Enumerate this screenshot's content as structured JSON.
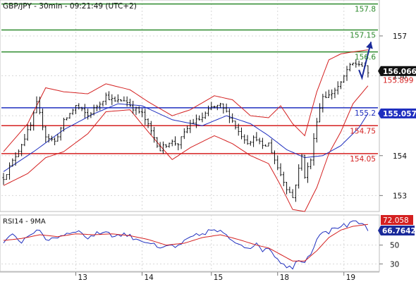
{
  "chart_data": [
    {
      "type": "candlestick",
      "title": "GBP/JPY - 30min - 09:21:49 (UTC+2)",
      "ylim": [
        152.6,
        157.9
      ],
      "yticks": [
        153,
        154,
        155,
        156,
        157
      ],
      "x_day_labels": [
        {
          "label": "13",
          "bar": 24
        },
        {
          "label": "14",
          "bar": 46
        },
        {
          "label": "15",
          "bar": 69
        },
        {
          "label": "18",
          "bar": 91
        },
        {
          "label": "19",
          "bar": 113
        }
      ],
      "n_bars": 122,
      "last_price": "156.066",
      "reference_price": "155.899",
      "current_value_label": "155.057",
      "resistance_levels": [
        {
          "label": "157.8",
          "value": 157.8,
          "color": "#2e8b2e"
        },
        {
          "label": "157.15",
          "value": 157.15,
          "color": "#2e8b2e"
        },
        {
          "label": "156.6",
          "value": 156.6,
          "color": "#2e8b2e"
        }
      ],
      "pivot_level": {
        "label": "155.2",
        "value": 155.2,
        "color": "#1f2fbf"
      },
      "support_levels": [
        {
          "label": "154.75",
          "value": 154.75,
          "color": "#d42020"
        },
        {
          "label": "154.05",
          "value": 154.05,
          "color": "#d42020"
        }
      ],
      "close_anchors": [
        [
          0,
          153.45
        ],
        [
          3,
          153.85
        ],
        [
          6,
          154.3
        ],
        [
          9,
          154.75
        ],
        [
          11,
          155.3
        ],
        [
          14,
          154.5
        ],
        [
          17,
          154.35
        ],
        [
          20,
          154.85
        ],
        [
          24,
          155.25
        ],
        [
          28,
          155.0
        ],
        [
          31,
          155.25
        ],
        [
          34,
          155.5
        ],
        [
          37,
          155.35
        ],
        [
          40,
          155.4
        ],
        [
          43,
          155.2
        ],
        [
          46,
          155.05
        ],
        [
          49,
          154.6
        ],
        [
          52,
          154.15
        ],
        [
          55,
          154.35
        ],
        [
          58,
          154.3
        ],
        [
          62,
          154.8
        ],
        [
          66,
          154.95
        ],
        [
          69,
          155.2
        ],
        [
          72,
          155.25
        ],
        [
          75,
          155.0
        ],
        [
          78,
          154.6
        ],
        [
          81,
          154.35
        ],
        [
          84,
          154.45
        ],
        [
          86,
          154.2
        ],
        [
          88,
          154.3
        ],
        [
          91,
          153.7
        ],
        [
          94,
          153.2
        ],
        [
          96,
          152.95
        ],
        [
          98,
          153.65
        ],
        [
          99,
          154.0
        ],
        [
          100,
          153.5
        ],
        [
          102,
          153.9
        ],
        [
          104,
          154.9
        ],
        [
          106,
          155.5
        ],
        [
          108,
          155.5
        ],
        [
          110,
          155.65
        ],
        [
          112,
          155.8
        ],
        [
          114,
          156.15
        ],
        [
          116,
          156.3
        ],
        [
          118,
          156.3
        ],
        [
          120,
          156.2
        ],
        [
          121,
          156.066
        ]
      ],
      "moving_average_anchors": [
        [
          0,
          153.6
        ],
        [
          10,
          154.1
        ],
        [
          20,
          154.65
        ],
        [
          30,
          155.05
        ],
        [
          38,
          155.3
        ],
        [
          46,
          155.25
        ],
        [
          56,
          154.9
        ],
        [
          66,
          154.75
        ],
        [
          74,
          155.0
        ],
        [
          82,
          154.8
        ],
        [
          88,
          154.5
        ],
        [
          94,
          154.15
        ],
        [
          100,
          153.95
        ],
        [
          106,
          154.0
        ],
        [
          112,
          154.25
        ],
        [
          118,
          154.7
        ],
        [
          121,
          155.057
        ]
      ],
      "bollinger_upper_anchors": [
        [
          0,
          154.1
        ],
        [
          8,
          154.8
        ],
        [
          14,
          155.7
        ],
        [
          20,
          155.6
        ],
        [
          28,
          155.55
        ],
        [
          34,
          155.8
        ],
        [
          42,
          155.65
        ],
        [
          48,
          155.35
        ],
        [
          56,
          155.0
        ],
        [
          62,
          155.15
        ],
        [
          70,
          155.5
        ],
        [
          76,
          155.4
        ],
        [
          82,
          155.0
        ],
        [
          88,
          154.95
        ],
        [
          92,
          155.25
        ],
        [
          96,
          154.8
        ],
        [
          100,
          154.5
        ],
        [
          104,
          155.6
        ],
        [
          108,
          156.4
        ],
        [
          112,
          156.55
        ],
        [
          116,
          156.6
        ],
        [
          121,
          156.65
        ]
      ],
      "bollinger_lower_anchors": [
        [
          0,
          153.25
        ],
        [
          8,
          153.55
        ],
        [
          14,
          153.95
        ],
        [
          20,
          154.1
        ],
        [
          28,
          154.55
        ],
        [
          34,
          155.1
        ],
        [
          42,
          155.15
        ],
        [
          48,
          154.6
        ],
        [
          56,
          153.9
        ],
        [
          62,
          154.2
        ],
        [
          70,
          154.5
        ],
        [
          76,
          154.3
        ],
        [
          82,
          154.0
        ],
        [
          88,
          153.8
        ],
        [
          92,
          153.25
        ],
        [
          96,
          152.65
        ],
        [
          100,
          152.6
        ],
        [
          104,
          153.2
        ],
        [
          108,
          154.05
        ],
        [
          112,
          154.6
        ],
        [
          116,
          155.3
        ],
        [
          121,
          155.75
        ]
      ],
      "projection": [
        [
          118,
          156.15
        ],
        [
          119,
          155.95
        ],
        [
          122,
          156.85
        ]
      ]
    },
    {
      "type": "line",
      "title": "RSI14 - 9MA",
      "ylim": [
        22,
        82
      ],
      "yticks": [
        30,
        50
      ],
      "tick_labels": [
        "30",
        "50"
      ],
      "rsi_value_label": "66.7642",
      "ma_value_label": "72.058",
      "series": [
        {
          "name": "RSI14",
          "color": "#1f2fbf",
          "anchors": [
            [
              0,
              53
            ],
            [
              3,
              60
            ],
            [
              6,
              54
            ],
            [
              9,
              62
            ],
            [
              11,
              67
            ],
            [
              14,
              56
            ],
            [
              17,
              58
            ],
            [
              20,
              61
            ],
            [
              24,
              66
            ],
            [
              28,
              58
            ],
            [
              31,
              62
            ],
            [
              34,
              65
            ],
            [
              37,
              59
            ],
            [
              40,
              62
            ],
            [
              43,
              58
            ],
            [
              46,
              55
            ],
            [
              49,
              52
            ],
            [
              52,
              45
            ],
            [
              55,
              50
            ],
            [
              58,
              48
            ],
            [
              62,
              58
            ],
            [
              66,
              62
            ],
            [
              69,
              66
            ],
            [
              72,
              64
            ],
            [
              75,
              57
            ],
            [
              78,
              52
            ],
            [
              81,
              48
            ],
            [
              84,
              50
            ],
            [
              86,
              45
            ],
            [
              88,
              48
            ],
            [
              91,
              35
            ],
            [
              94,
              28
            ],
            [
              96,
              25
            ],
            [
              98,
              36
            ],
            [
              100,
              32
            ],
            [
              102,
              42
            ],
            [
              104,
              57
            ],
            [
              106,
              66
            ],
            [
              108,
              64
            ],
            [
              110,
              68
            ],
            [
              112,
              71
            ],
            [
              114,
              70
            ],
            [
              116,
              74
            ],
            [
              118,
              73
            ],
            [
              120,
              71
            ],
            [
              121,
              66.76
            ]
          ]
        },
        {
          "name": "9MA",
          "color": "#d42020",
          "anchors": [
            [
              0,
              55
            ],
            [
              6,
              57
            ],
            [
              12,
              61
            ],
            [
              18,
              59
            ],
            [
              24,
              62
            ],
            [
              30,
              61
            ],
            [
              36,
              62
            ],
            [
              42,
              60
            ],
            [
              48,
              56
            ],
            [
              54,
              50
            ],
            [
              60,
              52
            ],
            [
              66,
              58
            ],
            [
              72,
              61
            ],
            [
              78,
              56
            ],
            [
              84,
              50
            ],
            [
              88,
              47
            ],
            [
              92,
              40
            ],
            [
              96,
              33
            ],
            [
              100,
              33
            ],
            [
              104,
              44
            ],
            [
              108,
              58
            ],
            [
              112,
              66
            ],
            [
              116,
              70
            ],
            [
              121,
              72.06
            ]
          ]
        }
      ]
    }
  ]
}
